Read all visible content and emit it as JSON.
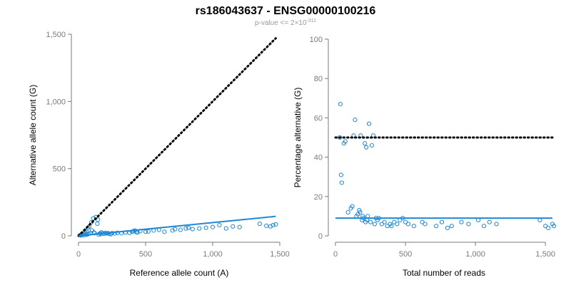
{
  "title": "rs186043637 - ENSG00000100216",
  "subtitle": {
    "prefix": "p-value <= 2",
    "times": "×",
    "base": "10",
    "exponent": "-311"
  },
  "colors": {
    "points": "#1f88d2",
    "fit": "#1f88d2",
    "reference_line": "#000000",
    "axis": "#7a7a7a"
  },
  "chart_data": [
    {
      "type": "scatter",
      "xlabel": "Reference allele count (A)",
      "ylabel": "Alternative allele count (G)",
      "xlim": [
        0,
        1500
      ],
      "ylim": [
        0,
        1500
      ],
      "xticks": [
        0,
        500,
        1000,
        1500
      ],
      "xtick_labels": [
        "0",
        "500",
        "1,000",
        "1,500"
      ],
      "yticks": [
        0,
        500,
        1000,
        1500
      ],
      "ytick_labels": [
        "0",
        "500",
        "1,000",
        "1,500"
      ],
      "grid": false,
      "points": [
        [
          10,
          5
        ],
        [
          15,
          3
        ],
        [
          20,
          8
        ],
        [
          25,
          12
        ],
        [
          30,
          10
        ],
        [
          35,
          4
        ],
        [
          40,
          15
        ],
        [
          45,
          20
        ],
        [
          50,
          25
        ],
        [
          55,
          8
        ],
        [
          60,
          30
        ],
        [
          65,
          10
        ],
        [
          70,
          60
        ],
        [
          75,
          15
        ],
        [
          80,
          70
        ],
        [
          90,
          20
        ],
        [
          95,
          100
        ],
        [
          100,
          40
        ],
        [
          110,
          130
        ],
        [
          115,
          25
        ],
        [
          120,
          20
        ],
        [
          130,
          140
        ],
        [
          140,
          90
        ],
        [
          145,
          120
        ],
        [
          150,
          10
        ],
        [
          160,
          18
        ],
        [
          165,
          12
        ],
        [
          170,
          25
        ],
        [
          180,
          20
        ],
        [
          190,
          15
        ],
        [
          200,
          22
        ],
        [
          210,
          18
        ],
        [
          220,
          20
        ],
        [
          230,
          15
        ],
        [
          240,
          12
        ],
        [
          250,
          20
        ],
        [
          270,
          18
        ],
        [
          290,
          22
        ],
        [
          320,
          20
        ],
        [
          350,
          25
        ],
        [
          380,
          22
        ],
        [
          400,
          30
        ],
        [
          410,
          35
        ],
        [
          420,
          40
        ],
        [
          430,
          28
        ],
        [
          440,
          25
        ],
        [
          460,
          35
        ],
        [
          500,
          30
        ],
        [
          520,
          32
        ],
        [
          560,
          40
        ],
        [
          600,
          45
        ],
        [
          640,
          30
        ],
        [
          700,
          40
        ],
        [
          720,
          50
        ],
        [
          760,
          45
        ],
        [
          800,
          55
        ],
        [
          820,
          60
        ],
        [
          850,
          50
        ],
        [
          900,
          55
        ],
        [
          950,
          60
        ],
        [
          1000,
          65
        ],
        [
          1050,
          80
        ],
        [
          1100,
          55
        ],
        [
          1150,
          70
        ],
        [
          1200,
          65
        ],
        [
          1350,
          90
        ],
        [
          1400,
          75
        ],
        [
          1430,
          70
        ],
        [
          1450,
          80
        ],
        [
          1470,
          85
        ]
      ],
      "reference_line": [
        [
          0,
          0
        ],
        [
          1470,
          1470
        ]
      ],
      "fit_line": [
        [
          0,
          0
        ],
        [
          1470,
          145
        ]
      ]
    },
    {
      "type": "scatter",
      "xlabel": "Total number of reads",
      "ylabel": "Percentage alternative (G)",
      "xlim": [
        0,
        1550
      ],
      "ylim": [
        0,
        100
      ],
      "xticks": [
        0,
        500,
        1000,
        1500
      ],
      "xtick_labels": [
        "0",
        "500",
        "1,000",
        "1,500"
      ],
      "yticks": [
        0,
        20,
        40,
        60,
        80,
        100
      ],
      "ytick_labels": [
        "0",
        "20",
        "40",
        "60",
        "80",
        "100"
      ],
      "grid": false,
      "points": [
        [
          30,
          50
        ],
        [
          35,
          67
        ],
        [
          40,
          31
        ],
        [
          45,
          27
        ],
        [
          60,
          47
        ],
        [
          70,
          48
        ],
        [
          90,
          12
        ],
        [
          110,
          14
        ],
        [
          120,
          15
        ],
        [
          130,
          51
        ],
        [
          140,
          59
        ],
        [
          150,
          10
        ],
        [
          160,
          11
        ],
        [
          170,
          13
        ],
        [
          175,
          12
        ],
        [
          180,
          51
        ],
        [
          190,
          8
        ],
        [
          195,
          10
        ],
        [
          200,
          9
        ],
        [
          210,
          47
        ],
        [
          215,
          7
        ],
        [
          220,
          45
        ],
        [
          225,
          8
        ],
        [
          230,
          10
        ],
        [
          240,
          57
        ],
        [
          250,
          7
        ],
        [
          260,
          46
        ],
        [
          270,
          51
        ],
        [
          280,
          6
        ],
        [
          290,
          9
        ],
        [
          300,
          8
        ],
        [
          310,
          9
        ],
        [
          330,
          6
        ],
        [
          350,
          7
        ],
        [
          370,
          5
        ],
        [
          390,
          6
        ],
        [
          400,
          5
        ],
        [
          420,
          7
        ],
        [
          440,
          6
        ],
        [
          460,
          8
        ],
        [
          480,
          9
        ],
        [
          500,
          7
        ],
        [
          520,
          6
        ],
        [
          560,
          5
        ],
        [
          620,
          7
        ],
        [
          640,
          6
        ],
        [
          720,
          5
        ],
        [
          760,
          7
        ],
        [
          800,
          4
        ],
        [
          830,
          5
        ],
        [
          900,
          7
        ],
        [
          950,
          6
        ],
        [
          1020,
          8
        ],
        [
          1060,
          5
        ],
        [
          1100,
          7
        ],
        [
          1150,
          6
        ],
        [
          1460,
          8
        ],
        [
          1500,
          5
        ],
        [
          1520,
          4
        ],
        [
          1550,
          6
        ],
        [
          1560,
          5
        ]
      ],
      "reference_line": [
        [
          0,
          50
        ],
        [
          1550,
          50
        ]
      ],
      "fit_line": [
        [
          0,
          9
        ],
        [
          1550,
          9
        ]
      ]
    }
  ]
}
